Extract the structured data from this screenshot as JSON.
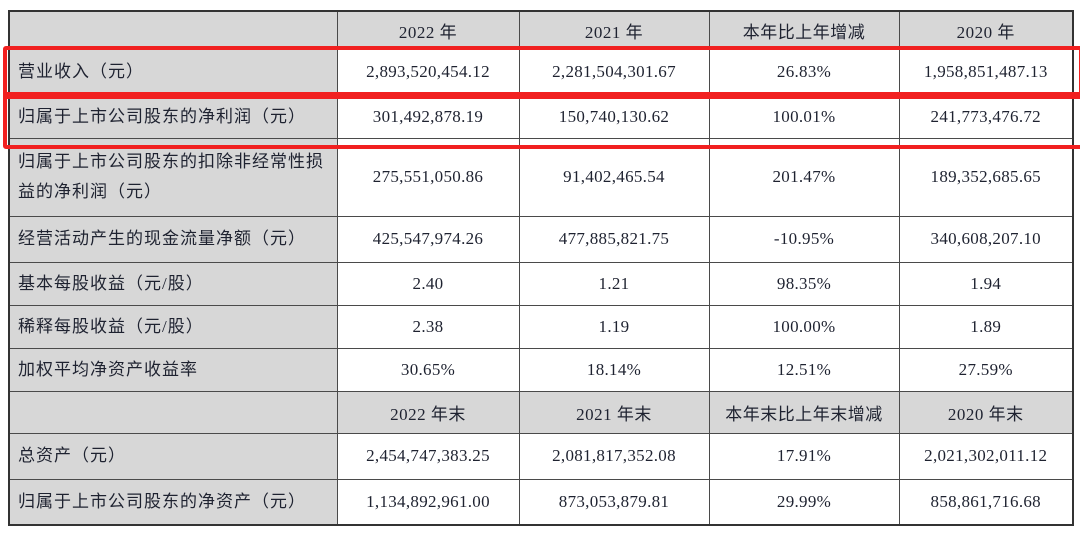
{
  "table": {
    "header_annual": {
      "corner": "",
      "cols": [
        "2022 年",
        "2021 年",
        "本年比上年增减",
        "2020 年"
      ]
    },
    "rows_annual": [
      {
        "label": "营业收入（元）",
        "values": [
          "2,893,520,454.12",
          "2,281,504,301.67",
          "26.83%",
          "1,958,851,487.13"
        ]
      },
      {
        "label": "归属于上市公司股东的净利润（元）",
        "values": [
          "301,492,878.19",
          "150,740,130.62",
          "100.01%",
          "241,773,476.72"
        ]
      },
      {
        "label": "归属于上市公司股东的扣除非经常性损益的净利润（元）",
        "values": [
          "275,551,050.86",
          "91,402,465.54",
          "201.47%",
          "189,352,685.65"
        ]
      },
      {
        "label": "经营活动产生的现金流量净额（元）",
        "values": [
          "425,547,974.26",
          "477,885,821.75",
          "-10.95%",
          "340,608,207.10"
        ]
      },
      {
        "label": "基本每股收益（元/股）",
        "values": [
          "2.40",
          "1.21",
          "98.35%",
          "1.94"
        ]
      },
      {
        "label": "稀释每股收益（元/股）",
        "values": [
          "2.38",
          "1.19",
          "100.00%",
          "1.89"
        ]
      },
      {
        "label": "加权平均净资产收益率",
        "values": [
          "30.65%",
          "18.14%",
          "12.51%",
          "27.59%"
        ]
      }
    ],
    "header_yearend": {
      "corner": "",
      "cols": [
        "2022 年末",
        "2021 年末",
        "本年末比上年末增减",
        "2020 年末"
      ]
    },
    "rows_yearend": [
      {
        "label": "总资产（元）",
        "values": [
          "2,454,747,383.25",
          "2,081,817,352.08",
          "17.91%",
          "2,021,302,011.12"
        ]
      },
      {
        "label": "归属于上市公司股东的净资产（元）",
        "values": [
          "1,134,892,961.00",
          "873,053,879.81",
          "29.99%",
          "858,861,716.68"
        ]
      }
    ],
    "highlights": {
      "row_revenue": "highlighted",
      "row_net_profit": "highlighted",
      "color": "#f12020"
    },
    "colors": {
      "cell_grey": "#d7d7d7",
      "grid_line": "#4a4a4a",
      "text": "#1e2230",
      "background": "#ffffff"
    }
  }
}
